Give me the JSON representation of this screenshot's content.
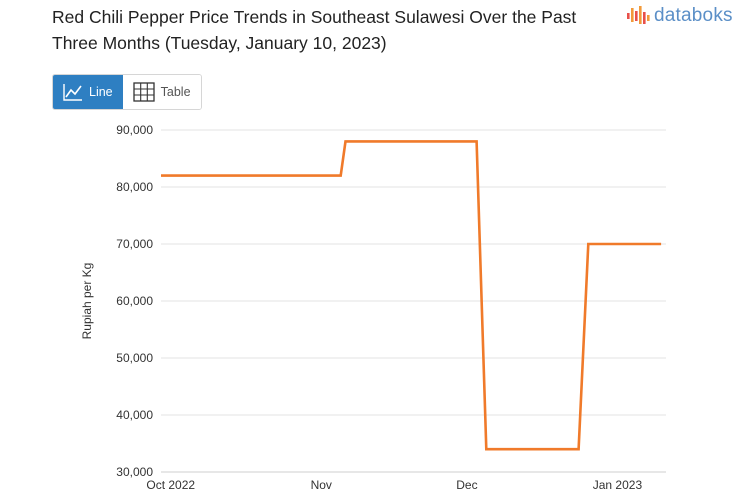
{
  "title": "Red Chili Pepper Price Trends in Southeast Sulawesi Over the Past Three Months (Tuesday, January 10, 2023)",
  "brand": {
    "name": "databoks",
    "icon": "databoks-logo-icon",
    "colors": [
      "#e8504a",
      "#f29a3a",
      "#5b8fc7"
    ]
  },
  "view_toggle": {
    "line_label": "Line",
    "table_label": "Table",
    "active": "line",
    "active_color": "#2e7fc2"
  },
  "chart_data": {
    "type": "line",
    "title": "Red Chili Pepper Price Trends in Southeast Sulawesi Over the Past Three Months (Tuesday, January 10, 2023)",
    "xlabel": "",
    "ylabel": "Rupiah per Kg",
    "ylim": [
      30000,
      90000
    ],
    "yticks": [
      30000,
      40000,
      50000,
      60000,
      70000,
      80000,
      90000
    ],
    "ytick_labels": [
      "30,000",
      "40,000",
      "50,000",
      "60,000",
      "70,000",
      "80,000",
      "90,000"
    ],
    "x_range": [
      "2022-09-29",
      "2023-01-11"
    ],
    "xticks": [
      {
        "date": "2022-10-01",
        "label": "Oct 2022"
      },
      {
        "date": "2022-11-01",
        "label": "Nov"
      },
      {
        "date": "2022-12-01",
        "label": "Dec"
      },
      {
        "date": "2023-01-01",
        "label": "Jan 2023"
      }
    ],
    "grid": true,
    "series": [
      {
        "name": "Red Chili Pepper",
        "color": "#f07a2a",
        "points": [
          {
            "date": "2022-09-29",
            "value": 82000
          },
          {
            "date": "2022-11-05",
            "value": 82000
          },
          {
            "date": "2022-11-06",
            "value": 88000
          },
          {
            "date": "2022-12-03",
            "value": 88000
          },
          {
            "date": "2022-12-05",
            "value": 34000
          },
          {
            "date": "2022-12-24",
            "value": 34000
          },
          {
            "date": "2022-12-26",
            "value": 70000
          },
          {
            "date": "2023-01-10",
            "value": 70000
          }
        ]
      }
    ]
  }
}
